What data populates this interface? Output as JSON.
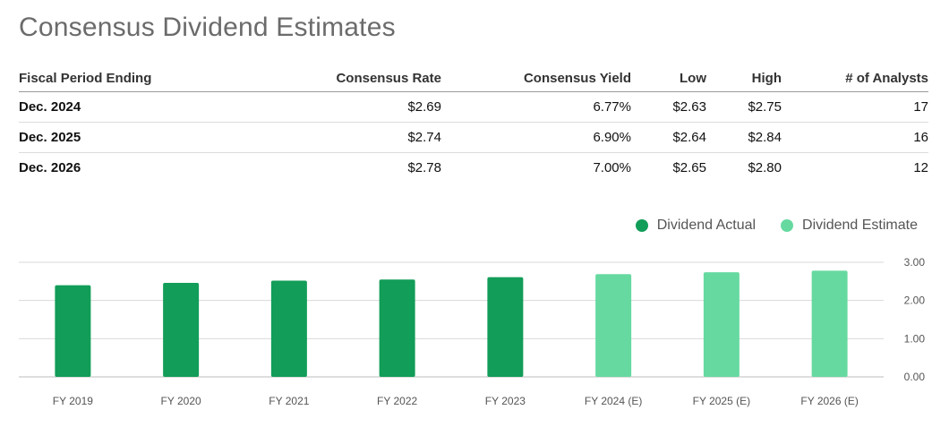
{
  "title": "Consensus Dividend Estimates",
  "table": {
    "headers": [
      "Fiscal Period Ending",
      "Consensus Rate",
      "Consensus Yield",
      "Low",
      "High",
      "# of Analysts"
    ],
    "rows": [
      [
        "Dec. 2024",
        "$2.69",
        "6.77%",
        "$2.63",
        "$2.75",
        "17"
      ],
      [
        "Dec. 2025",
        "$2.74",
        "6.90%",
        "$2.64",
        "$2.84",
        "16"
      ],
      [
        "Dec. 2026",
        "$2.78",
        "7.00%",
        "$2.65",
        "$2.80",
        "12"
      ]
    ]
  },
  "legend": {
    "actual_label": "Dividend Actual",
    "estimate_label": "Dividend Estimate"
  },
  "colors": {
    "actual": "#129d58",
    "estimate": "#66d9a0",
    "grid": "#d9d9d9"
  },
  "chart_data": {
    "type": "bar",
    "categories": [
      "FY 2019",
      "FY 2020",
      "FY 2021",
      "FY 2022",
      "FY 2023",
      "FY 2024 (E)",
      "FY 2025 (E)",
      "FY 2026 (E)"
    ],
    "series": [
      {
        "name": "Dividend Actual",
        "values": [
          2.4,
          2.46,
          2.52,
          2.55,
          2.61,
          null,
          null,
          null
        ]
      },
      {
        "name": "Dividend Estimate",
        "values": [
          null,
          null,
          null,
          null,
          null,
          2.69,
          2.74,
          2.78
        ]
      }
    ],
    "yticks": [
      "0.00",
      "1.00",
      "2.00",
      "3.00"
    ],
    "ylim": [
      0,
      3
    ],
    "grid": true,
    "y_axis_side": "right",
    "legend_position": "top-right"
  }
}
